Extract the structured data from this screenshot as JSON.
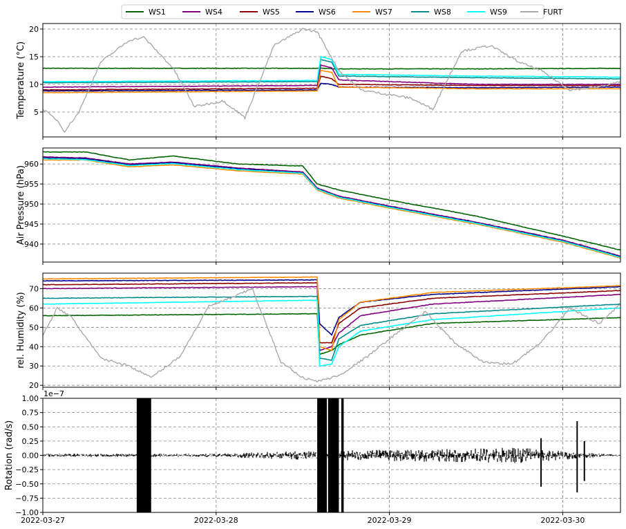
{
  "legend": [
    {
      "name": "WS1",
      "color": "#006400"
    },
    {
      "name": "WS4",
      "color": "#800080"
    },
    {
      "name": "WS5",
      "color": "#8b0000"
    },
    {
      "name": "WS6",
      "color": "#00008b"
    },
    {
      "name": "WS7",
      "color": "#ff8c00"
    },
    {
      "name": "WS8",
      "color": "#008b8b"
    },
    {
      "name": "WS9",
      "color": "#00ffff"
    },
    {
      "name": "FURT",
      "color": "#a9a9a9"
    }
  ],
  "chart_data": [
    {
      "type": "line",
      "ylabel": "Temperature (°C)",
      "ylim": [
        0.5,
        21
      ],
      "yticks": [
        5,
        10,
        15,
        20
      ],
      "xlim": [
        "2022-03-27T00:00",
        "2022-03-30T08:00"
      ],
      "grid": true,
      "series": [
        {
          "name": "WS1",
          "x": [
            "2022-03-27T00:00",
            "2022-03-28T14:00",
            "2022-03-28T14:30",
            "2022-03-28T17:00",
            "2022-03-29T12:00",
            "2022-03-30T08:00"
          ],
          "y": [
            12.9,
            12.9,
            12.9,
            12.8,
            12.8,
            12.9
          ]
        },
        {
          "name": "WS4",
          "x": [
            "2022-03-27T00:00",
            "2022-03-28T14:00",
            "2022-03-28T14:30",
            "2022-03-28T16:00",
            "2022-03-28T17:00",
            "2022-03-29T12:00",
            "2022-03-30T08:00"
          ],
          "y": [
            9.5,
            9.8,
            13.5,
            13.0,
            10.8,
            10.0,
            10.0
          ]
        },
        {
          "name": "WS5",
          "x": [
            "2022-03-27T00:00",
            "2022-03-28T14:00",
            "2022-03-28T14:30",
            "2022-03-28T16:00",
            "2022-03-28T17:00",
            "2022-03-29T12:00",
            "2022-03-30T08:00"
          ],
          "y": [
            9.0,
            9.3,
            11.5,
            11.0,
            10.0,
            9.8,
            9.8
          ]
        },
        {
          "name": "WS6",
          "x": [
            "2022-03-27T00:00",
            "2022-03-28T14:00",
            "2022-03-28T14:30",
            "2022-03-28T16:00",
            "2022-03-28T17:00",
            "2022-03-29T12:00",
            "2022-03-30T08:00"
          ],
          "y": [
            8.8,
            9.0,
            10.2,
            10.0,
            9.5,
            9.4,
            9.5
          ]
        },
        {
          "name": "WS7",
          "x": [
            "2022-03-27T00:00",
            "2022-03-28T14:00",
            "2022-03-28T14:30",
            "2022-03-28T16:00",
            "2022-03-28T17:00",
            "2022-03-29T12:00",
            "2022-03-30T08:00"
          ],
          "y": [
            8.5,
            8.8,
            12.5,
            12.2,
            9.5,
            9.2,
            9.2
          ]
        },
        {
          "name": "WS8",
          "x": [
            "2022-03-27T00:00",
            "2022-03-28T14:00",
            "2022-03-28T14:30",
            "2022-03-28T16:00",
            "2022-03-28T17:00",
            "2022-03-29T12:00",
            "2022-03-30T08:00"
          ],
          "y": [
            10.3,
            10.5,
            14.5,
            14.0,
            11.5,
            11.2,
            11.0
          ]
        },
        {
          "name": "WS9",
          "x": [
            "2022-03-27T00:00",
            "2022-03-28T14:00",
            "2022-03-28T14:30",
            "2022-03-28T16:00",
            "2022-03-28T17:00",
            "2022-03-29T12:00",
            "2022-03-30T08:00"
          ],
          "y": [
            10.5,
            10.7,
            15.0,
            14.5,
            11.8,
            11.5,
            11.3
          ]
        },
        {
          "name": "FURT",
          "x": [
            "2022-03-27T00:00",
            "2022-03-27T02:00",
            "2022-03-27T03:00",
            "2022-03-27T05:00",
            "2022-03-27T08:00",
            "2022-03-27T12:00",
            "2022-03-27T14:00",
            "2022-03-27T18:00",
            "2022-03-27T21:00",
            "2022-03-28T01:00",
            "2022-03-28T04:00",
            "2022-03-28T08:00",
            "2022-03-28T12:00",
            "2022-03-28T14:00",
            "2022-03-28T17:00",
            "2022-03-28T20:00",
            "2022-03-29T03:00",
            "2022-03-29T06:00",
            "2022-03-29T10:00",
            "2022-03-29T14:00",
            "2022-03-29T18:00",
            "2022-03-29T21:00",
            "2022-03-30T01:00",
            "2022-03-30T05:00",
            "2022-03-30T08:00"
          ],
          "y": [
            5.5,
            3.5,
            1.5,
            5,
            14,
            18,
            18.5,
            13,
            6,
            7,
            4,
            17,
            20,
            19.5,
            12.5,
            9,
            7.5,
            5.5,
            16,
            17,
            14,
            12.5,
            9,
            9.5,
            10.5
          ]
        }
      ]
    },
    {
      "type": "line",
      "ylabel": "Air Pressure (hPa)",
      "ylim": [
        935.5,
        964
      ],
      "yticks": [
        940,
        945,
        950,
        955,
        960
      ],
      "xlim": [
        "2022-03-27T00:00",
        "2022-03-30T08:00"
      ],
      "grid": true,
      "series": [
        {
          "name": "WS1",
          "x": [
            "2022-03-27T00:00",
            "2022-03-27T06:00",
            "2022-03-27T12:00",
            "2022-03-27T18:00",
            "2022-03-28T03:00",
            "2022-03-28T12:00",
            "2022-03-28T14:00",
            "2022-03-28T17:00",
            "2022-03-29T00:00",
            "2022-03-29T12:00",
            "2022-03-30T00:00",
            "2022-03-30T08:00"
          ],
          "y": [
            963,
            963,
            961,
            962,
            960,
            959.5,
            955,
            953.5,
            951,
            947,
            942,
            938.5
          ]
        },
        {
          "name": "WS4",
          "x": [
            "2022-03-27T00:00",
            "2022-03-27T06:00",
            "2022-03-27T12:00",
            "2022-03-27T18:00",
            "2022-03-28T03:00",
            "2022-03-28T12:00",
            "2022-03-28T14:00",
            "2022-03-28T17:00",
            "2022-03-29T00:00",
            "2022-03-29T12:00",
            "2022-03-30T00:00",
            "2022-03-30T08:00"
          ],
          "y": [
            961.8,
            961.5,
            960,
            960.5,
            959,
            958,
            954,
            952,
            949.5,
            945.5,
            941,
            937
          ]
        },
        {
          "name": "WS6",
          "x": [
            "2022-03-27T00:00",
            "2022-03-27T06:00",
            "2022-03-27T12:00",
            "2022-03-27T18:00",
            "2022-03-28T03:00",
            "2022-03-28T12:00",
            "2022-03-28T14:00",
            "2022-03-28T17:00",
            "2022-03-29T00:00",
            "2022-03-29T12:00",
            "2022-03-30T00:00",
            "2022-03-30T08:00"
          ],
          "y": [
            961.5,
            961.3,
            959.8,
            960.3,
            958.8,
            957.8,
            953.8,
            951.8,
            949.3,
            945.3,
            940.8,
            936.8
          ]
        },
        {
          "name": "WS7",
          "x": [
            "2022-03-27T00:00",
            "2022-03-27T06:00",
            "2022-03-27T12:00",
            "2022-03-27T18:00",
            "2022-03-28T03:00",
            "2022-03-28T12:00",
            "2022-03-28T14:00",
            "2022-03-28T17:00",
            "2022-03-29T00:00",
            "2022-03-29T12:00",
            "2022-03-30T00:00",
            "2022-03-30T08:00"
          ],
          "y": [
            961,
            961,
            959.3,
            959.8,
            958.3,
            957.5,
            953.5,
            951.5,
            949,
            945,
            940.5,
            936.5
          ]
        },
        {
          "name": "WS9",
          "x": [
            "2022-03-27T00:00",
            "2022-03-27T06:00",
            "2022-03-27T12:00",
            "2022-03-27T18:00",
            "2022-03-28T03:00",
            "2022-03-28T12:00",
            "2022-03-28T14:00",
            "2022-03-28T17:00",
            "2022-03-29T00:00",
            "2022-03-29T12:00",
            "2022-03-30T00:00",
            "2022-03-30T08:00"
          ],
          "y": [
            961.3,
            961.1,
            959.6,
            960.1,
            958.6,
            957.7,
            953.7,
            951.7,
            949.2,
            945.2,
            940.7,
            936.7
          ]
        }
      ]
    },
    {
      "type": "line",
      "ylabel": "rel. Humidity (%)",
      "ylim": [
        19,
        78
      ],
      "yticks": [
        20,
        30,
        40,
        50,
        60,
        70
      ],
      "xlim": [
        "2022-03-27T00:00",
        "2022-03-30T08:00"
      ],
      "grid": true,
      "series": [
        {
          "name": "WS1",
          "x": [
            "2022-03-27T00:00",
            "2022-03-28T14:00",
            "2022-03-28T14:20",
            "2022-03-28T16:00",
            "2022-03-28T17:00",
            "2022-03-28T20:00",
            "2022-03-29T06:00",
            "2022-03-30T08:00"
          ],
          "y": [
            56,
            57,
            36,
            38,
            41,
            46,
            52,
            55
          ]
        },
        {
          "name": "WS4",
          "x": [
            "2022-03-27T00:00",
            "2022-03-28T14:00",
            "2022-03-28T14:20",
            "2022-03-28T16:00",
            "2022-03-28T17:00",
            "2022-03-28T20:00",
            "2022-03-29T06:00",
            "2022-03-30T08:00"
          ],
          "y": [
            70,
            71,
            38,
            40,
            47,
            56,
            62,
            67
          ]
        },
        {
          "name": "WS5",
          "x": [
            "2022-03-27T00:00",
            "2022-03-28T14:00",
            "2022-03-28T14:20",
            "2022-03-28T16:00",
            "2022-03-28T17:00",
            "2022-03-28T20:00",
            "2022-03-29T06:00",
            "2022-03-30T08:00"
          ],
          "y": [
            72,
            73,
            42,
            42,
            52,
            60,
            65,
            69
          ]
        },
        {
          "name": "WS6",
          "x": [
            "2022-03-27T00:00",
            "2022-03-28T14:00",
            "2022-03-28T14:20",
            "2022-03-28T16:00",
            "2022-03-28T17:00",
            "2022-03-28T20:00",
            "2022-03-29T06:00",
            "2022-03-30T08:00"
          ],
          "y": [
            74,
            74.5,
            52,
            46,
            55,
            63,
            67,
            71
          ]
        },
        {
          "name": "WS7",
          "x": [
            "2022-03-27T00:00",
            "2022-03-28T14:00",
            "2022-03-28T14:20",
            "2022-03-28T16:00",
            "2022-03-28T17:00",
            "2022-03-28T20:00",
            "2022-03-29T06:00",
            "2022-03-30T08:00"
          ],
          "y": [
            75,
            76,
            40,
            38,
            54,
            63,
            68,
            71.5
          ]
        },
        {
          "name": "WS8",
          "x": [
            "2022-03-27T00:00",
            "2022-03-28T14:00",
            "2022-03-28T14:20",
            "2022-03-28T16:00",
            "2022-03-28T17:00",
            "2022-03-28T20:00",
            "2022-03-29T06:00",
            "2022-03-30T08:00"
          ],
          "y": [
            65,
            66,
            34,
            33,
            44,
            51,
            57,
            62
          ]
        },
        {
          "name": "WS9",
          "x": [
            "2022-03-27T00:00",
            "2022-03-28T14:00",
            "2022-03-28T14:20",
            "2022-03-28T16:00",
            "2022-03-28T17:00",
            "2022-03-28T20:00",
            "2022-03-29T06:00",
            "2022-03-30T08:00"
          ],
          "y": [
            62,
            64,
            30,
            31,
            40,
            48,
            54,
            60
          ]
        },
        {
          "name": "FURT",
          "x": [
            "2022-03-27T00:00",
            "2022-03-27T02:00",
            "2022-03-27T04:00",
            "2022-03-27T08:00",
            "2022-03-27T12:00",
            "2022-03-27T15:00",
            "2022-03-27T19:00",
            "2022-03-27T23:00",
            "2022-03-28T02:00",
            "2022-03-28T05:00",
            "2022-03-28T09:00",
            "2022-03-28T12:00",
            "2022-03-28T14:00",
            "2022-03-28T17:00",
            "2022-03-28T21:00",
            "2022-03-29T01:00",
            "2022-03-29T05:00",
            "2022-03-29T09:00",
            "2022-03-29T13:00",
            "2022-03-29T17:00",
            "2022-03-29T21:00",
            "2022-03-30T01:00",
            "2022-03-30T05:00",
            "2022-03-30T08:00"
          ],
          "y": [
            46,
            60,
            55,
            34,
            30,
            24,
            35,
            61,
            65,
            70,
            32,
            24,
            22,
            25,
            35,
            47,
            58,
            42,
            32,
            31,
            42,
            60,
            52,
            62
          ]
        }
      ]
    },
    {
      "type": "line",
      "ylabel": "Rotation (rad/s)",
      "offset_text": "1e−7",
      "ylim": [
        -1.0,
        1.0
      ],
      "yticks": [
        -1.0,
        -0.75,
        -0.5,
        -0.25,
        0.0,
        0.25,
        0.5,
        0.75,
        1.0
      ],
      "ytick_labels": [
        "−1.00",
        "−0.75",
        "−0.50",
        "−0.25",
        "0.00",
        "0.25",
        "0.50",
        "0.75",
        "1.00"
      ],
      "xlim": [
        "2022-03-27T00:00",
        "2022-03-30T08:00"
      ],
      "xtick_labels": [
        "2022-03-27",
        "2022-03-28",
        "2022-03-29",
        "2022-03-30"
      ],
      "grid": true,
      "series": [
        {
          "name": "Rotation",
          "noise_envelope": {
            "x": [
              "2022-03-27T00:00",
              "2022-03-28T00:00",
              "2022-03-28T12:00",
              "2022-03-29T00:00",
              "2022-03-29T18:00",
              "2022-03-30T02:00",
              "2022-03-30T08:00"
            ],
            "amplitude": [
              0.03,
              0.03,
              0.08,
              0.1,
              0.14,
              0.06,
              0.01
            ]
          },
          "saturated_bursts": [
            [
              "2022-03-27T13:00",
              "2022-03-27T15:00"
            ],
            [
              "2022-03-28T14:00",
              "2022-03-28T15:20"
            ],
            [
              "2022-03-28T15:30",
              "2022-03-28T17:00"
            ],
            [
              "2022-03-28T17:20",
              "2022-03-28T17:40"
            ]
          ],
          "spikes": [
            {
              "x": "2022-03-29T21:00",
              "y": [
                -0.55,
                0.3
              ]
            },
            {
              "x": "2022-03-30T02:00",
              "y": [
                -0.65,
                0.6
              ]
            },
            {
              "x": "2022-03-30T03:00",
              "y": [
                -0.45,
                0.25
              ]
            }
          ]
        }
      ]
    }
  ]
}
